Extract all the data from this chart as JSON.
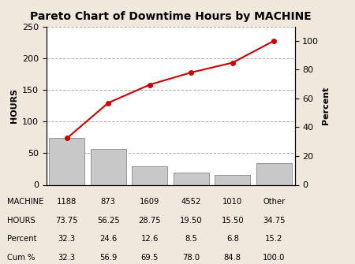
{
  "title": "Pareto Chart of Downtime Hours by MACHINE",
  "categories": [
    "1188",
    "873",
    "1609",
    "4552",
    "1010",
    "Other"
  ],
  "hours": [
    73.75,
    56.25,
    28.75,
    19.5,
    15.5,
    34.75
  ],
  "cum_pct": [
    32.3,
    56.9,
    69.5,
    78.0,
    84.8,
    100.0
  ],
  "bar_color": "#c8c8c8",
  "bar_edge_color": "#888888",
  "line_color": "#cc0000",
  "line_marker": "o",
  "ylabel_left": "HOURS",
  "ylabel_right": "Percent",
  "ylim_left": [
    0,
    250
  ],
  "ylim_right": [
    0,
    110
  ],
  "yticks_left": [
    0,
    50,
    100,
    150,
    200,
    250
  ],
  "yticks_right": [
    0,
    20,
    40,
    60,
    80,
    100
  ],
  "background_color": "#f0e8dc",
  "plot_bg_color": "#ffffff",
  "grid_color": "#b0b0b0",
  "title_fontsize": 10,
  "axis_label_fontsize": 8,
  "tick_fontsize": 8,
  "table_labels": [
    "MACHINE",
    "HOURS",
    "Percent",
    "Cum %"
  ],
  "table_row1": [
    "1188",
    "873",
    "1609",
    "4552",
    "1010",
    "Other"
  ],
  "table_row2": [
    "73.75",
    "56.25",
    "28.75",
    "19.50",
    "15.50",
    "34.75"
  ],
  "table_row3": [
    "32.3",
    "24.6",
    "12.6",
    "8.5",
    "6.8",
    "15.2"
  ],
  "table_row4": [
    "32.3",
    "56.9",
    "69.5",
    "78.0",
    "84.8",
    "100.0"
  ]
}
